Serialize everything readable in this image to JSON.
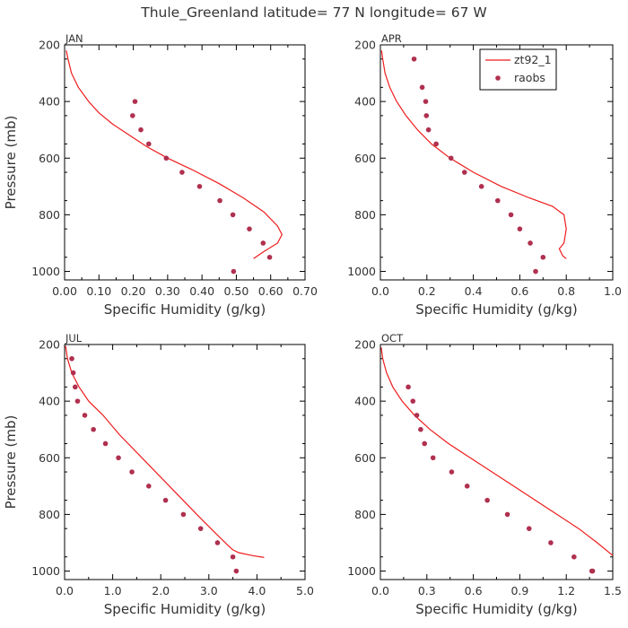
{
  "figure": {
    "title": "Thule_Greenland  latitude= 77 N longitude= 67 W"
  },
  "legend": {
    "entries": [
      {
        "label": "zt92_1",
        "kind": "line",
        "color": "#ee1c1c"
      },
      {
        "label": "raobs",
        "kind": "marker",
        "color": "#b0304f"
      }
    ]
  },
  "colors": {
    "model": "#ee1c1c",
    "obs": "#b0304f",
    "axes": "#000000"
  },
  "chart_data": [
    {
      "type": "scatter",
      "title": "JAN",
      "xlabel": "Specific Humidity (g/kg)",
      "ylabel": "Pressure (mb)",
      "xlim": [
        0,
        0.7
      ],
      "ylim": [
        200,
        1030
      ],
      "xticks": [
        0,
        0.1,
        0.2,
        0.3,
        0.4,
        0.5,
        0.6,
        0.7
      ],
      "xtick_labels": [
        "0.00",
        "0.10",
        "0.20",
        "0.30",
        "0.40",
        "0.50",
        "0.60",
        "0.70"
      ],
      "yticks": [
        200,
        400,
        600,
        800,
        1000
      ],
      "ytick_labels": [
        "200",
        "400",
        "600",
        "800",
        "1000"
      ],
      "show_ylabel": true,
      "show_legend": false,
      "series": [
        {
          "name": "zt92_1",
          "style": "line",
          "x": [
            0.005,
            0.01,
            0.02,
            0.04,
            0.07,
            0.1,
            0.14,
            0.19,
            0.24,
            0.3,
            0.37,
            0.45,
            0.52,
            0.58,
            0.62,
            0.633,
            0.62,
            0.58,
            0.55
          ],
          "y": [
            220,
            250,
            300,
            350,
            400,
            440,
            480,
            520,
            560,
            600,
            640,
            690,
            740,
            790,
            840,
            870,
            900,
            930,
            955
          ]
        },
        {
          "name": "raobs",
          "style": "marker",
          "x": [
            0.205,
            0.198,
            0.222,
            0.245,
            0.296,
            0.342,
            0.393,
            0.452,
            0.49,
            0.538,
            0.578,
            0.597,
            0.492
          ],
          "y": [
            400,
            450,
            500,
            550,
            600,
            650,
            700,
            750,
            800,
            850,
            900,
            950,
            1000
          ]
        }
      ]
    },
    {
      "type": "scatter",
      "title": "APR",
      "xlabel": "Specific Humidity (g/kg)",
      "ylabel": "",
      "xlim": [
        0,
        1.0
      ],
      "ylim": [
        200,
        1030
      ],
      "xticks": [
        0,
        0.2,
        0.4,
        0.6,
        0.8,
        1.0
      ],
      "xtick_labels": [
        "0.0",
        "0.2",
        "0.4",
        "0.6",
        "0.8",
        "1.0"
      ],
      "yticks": [
        200,
        400,
        600,
        800,
        1000
      ],
      "ytick_labels": [
        "200",
        "400",
        "600",
        "800",
        "1000"
      ],
      "show_ylabel": false,
      "show_legend": true,
      "series": [
        {
          "name": "zt92_1",
          "style": "line",
          "x": [
            0.005,
            0.01,
            0.02,
            0.04,
            0.07,
            0.11,
            0.16,
            0.22,
            0.3,
            0.4,
            0.52,
            0.64,
            0.74,
            0.79,
            0.8,
            0.79,
            0.77,
            0.785,
            0.8
          ],
          "y": [
            220,
            250,
            300,
            350,
            400,
            450,
            500,
            550,
            600,
            650,
            700,
            740,
            770,
            800,
            850,
            900,
            920,
            945,
            955
          ]
        },
        {
          "name": "raobs",
          "style": "marker",
          "x": [
            0.145,
            0.18,
            0.195,
            0.198,
            0.207,
            0.24,
            0.304,
            0.362,
            0.435,
            0.505,
            0.562,
            0.6,
            0.645,
            0.7,
            0.668
          ],
          "y": [
            250,
            350,
            400,
            450,
            500,
            550,
            600,
            650,
            700,
            750,
            800,
            850,
            900,
            950,
            1000
          ]
        }
      ]
    },
    {
      "type": "scatter",
      "title": "JUL",
      "xlabel": "Specific Humidity (g/kg)",
      "ylabel": "Pressure (mb)",
      "xlim": [
        0,
        5.0
      ],
      "ylim": [
        200,
        1030
      ],
      "xticks": [
        0,
        1,
        2,
        3,
        4,
        5
      ],
      "xtick_labels": [
        "0.0",
        "1.0",
        "2.0",
        "3.0",
        "4.0",
        "5.0"
      ],
      "yticks": [
        200,
        400,
        600,
        800,
        1000
      ],
      "ytick_labels": [
        "200",
        "400",
        "600",
        "800",
        "1000"
      ],
      "show_ylabel": true,
      "show_legend": false,
      "series": [
        {
          "name": "zt92_1",
          "style": "line",
          "x": [
            0.02,
            0.06,
            0.15,
            0.3,
            0.5,
            0.8,
            1.15,
            1.55,
            1.95,
            2.35,
            2.75,
            3.1,
            3.4,
            3.5,
            3.62,
            3.9,
            4.15
          ],
          "y": [
            205,
            250,
            300,
            350,
            400,
            450,
            520,
            590,
            660,
            730,
            800,
            860,
            910,
            925,
            935,
            945,
            952
          ]
        },
        {
          "name": "raobs",
          "style": "marker",
          "x": [
            0.15,
            0.18,
            0.22,
            0.27,
            0.42,
            0.6,
            0.85,
            1.12,
            1.4,
            1.75,
            2.1,
            2.47,
            2.83,
            3.18,
            3.5,
            3.57
          ],
          "y": [
            250,
            300,
            350,
            400,
            450,
            500,
            550,
            600,
            650,
            700,
            750,
            800,
            850,
            900,
            950,
            1000
          ]
        }
      ]
    },
    {
      "type": "scatter",
      "title": "OCT",
      "xlabel": "Specific Humidity (g/kg)",
      "ylabel": "",
      "xlim": [
        0,
        1.5
      ],
      "ylim": [
        200,
        1030
      ],
      "xticks": [
        0,
        0.3,
        0.6,
        0.9,
        1.2,
        1.5
      ],
      "xtick_labels": [
        "0.0",
        "0.3",
        "0.6",
        "0.9",
        "1.2",
        "1.5"
      ],
      "yticks": [
        200,
        400,
        600,
        800,
        1000
      ],
      "ytick_labels": [
        "200",
        "400",
        "600",
        "800",
        "1000"
      ],
      "show_ylabel": false,
      "show_legend": false,
      "series": [
        {
          "name": "zt92_1",
          "style": "line",
          "x": [
            0.005,
            0.015,
            0.04,
            0.08,
            0.14,
            0.22,
            0.32,
            0.44,
            0.58,
            0.72,
            0.86,
            1.0,
            1.14,
            1.28,
            1.4,
            1.5
          ],
          "y": [
            210,
            250,
            300,
            350,
            400,
            450,
            500,
            550,
            600,
            650,
            700,
            750,
            800,
            850,
            900,
            945
          ]
        },
        {
          "name": "raobs",
          "style": "marker",
          "x": [
            0.18,
            0.21,
            0.235,
            0.26,
            0.285,
            0.34,
            0.46,
            0.56,
            0.69,
            0.82,
            0.96,
            1.1,
            1.25,
            1.37,
            1.365
          ],
          "y": [
            350,
            400,
            450,
            500,
            550,
            600,
            650,
            700,
            750,
            800,
            850,
            900,
            950,
            1000,
            1000
          ]
        }
      ]
    }
  ]
}
